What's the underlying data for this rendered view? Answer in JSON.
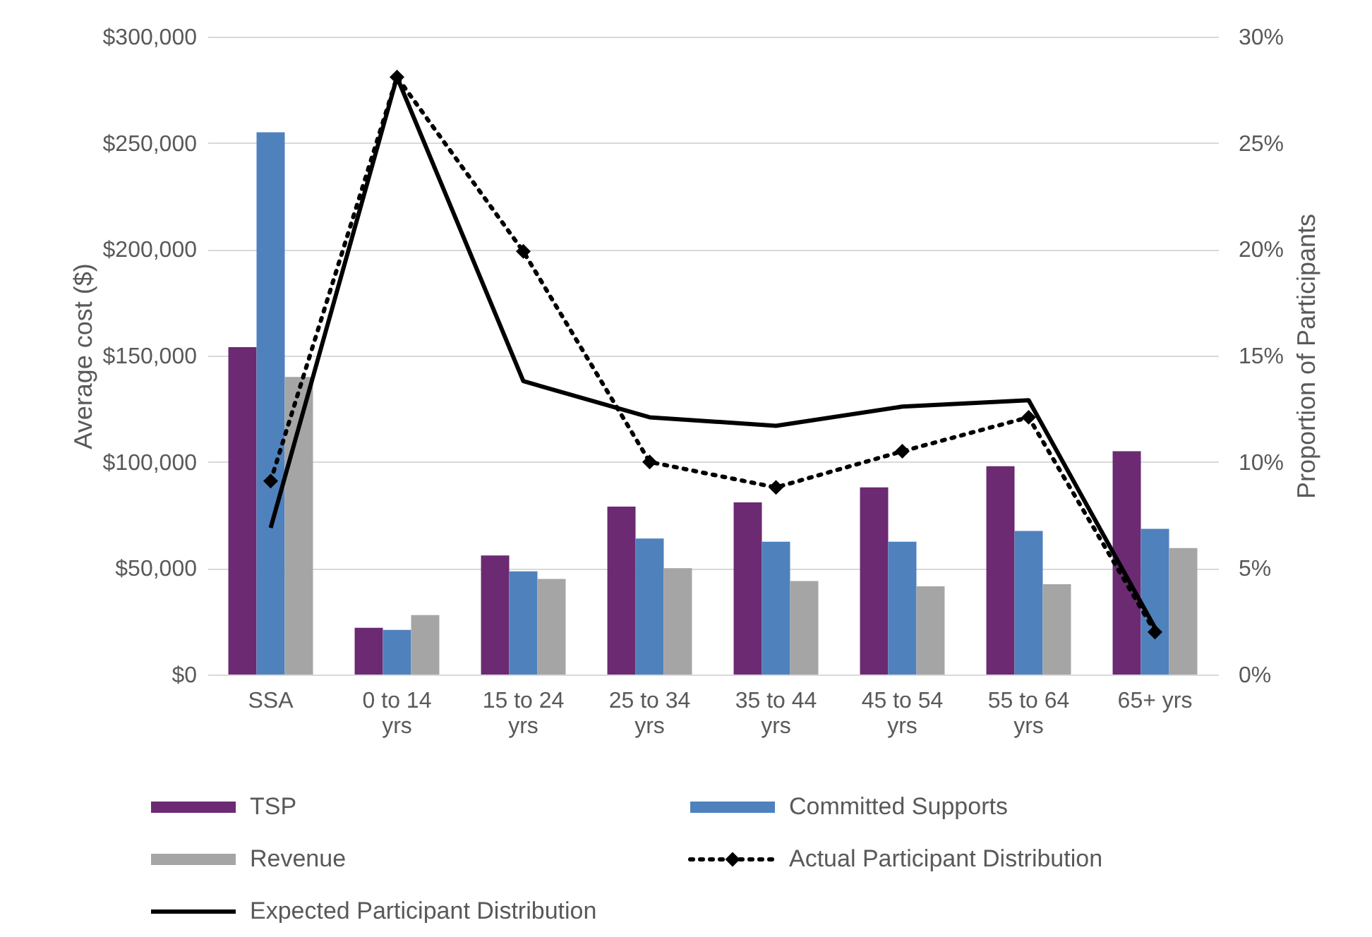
{
  "chart_data": {
    "type": "bar",
    "categories": [
      "SSA",
      "0 to 14 yrs",
      "15 to 24 yrs",
      "25 to 34 yrs",
      "35 to 44 yrs",
      "45 to 54 yrs",
      "55 to 64 yrs",
      "65+ yrs"
    ],
    "ylabel": "Average cost ($)",
    "y2label": "Proportion of Participants",
    "ylim": [
      0,
      300000
    ],
    "yticks": [
      {
        "value": 0,
        "label": "$0"
      },
      {
        "value": 50000,
        "label": "$50,000"
      },
      {
        "value": 100000,
        "label": "$100,000"
      },
      {
        "value": 150000,
        "label": "$150,000"
      },
      {
        "value": 200000,
        "label": "$200,000"
      },
      {
        "value": 250000,
        "label": "$250,000"
      },
      {
        "value": 300000,
        "label": "$300,000"
      }
    ],
    "y2lim": [
      0,
      30
    ],
    "y2ticks": [
      {
        "value": 0,
        "label": "0%"
      },
      {
        "value": 5,
        "label": "5%"
      },
      {
        "value": 10,
        "label": "10%"
      },
      {
        "value": 15,
        "label": "15%"
      },
      {
        "value": 20,
        "label": "20%"
      },
      {
        "value": 25,
        "label": "25%"
      },
      {
        "value": 30,
        "label": "30%"
      }
    ],
    "grid": "y",
    "legend": "bottom",
    "series": [
      {
        "name": "TSP",
        "type": "bar",
        "color": "#6b2a72",
        "values": [
          154000,
          22000,
          56000,
          79000,
          81000,
          88000,
          98000,
          105000
        ]
      },
      {
        "name": "Committed Supports",
        "type": "bar",
        "color": "#4f81bd",
        "values": [
          255000,
          21000,
          48500,
          64000,
          62500,
          62500,
          67500,
          68500
        ]
      },
      {
        "name": "Revenue",
        "type": "bar",
        "color": "#a5a5a5",
        "values": [
          140000,
          28000,
          45000,
          50000,
          44000,
          41500,
          42500,
          59500
        ]
      },
      {
        "name": "Actual Participant Distribution",
        "type": "line",
        "axis": "y2",
        "color": "#000000",
        "line_style": "dotted",
        "marker": "diamond",
        "values": [
          9.1,
          28.1,
          19.9,
          10.0,
          8.8,
          10.5,
          12.1,
          2.0
        ]
      },
      {
        "name": "Expected Participant Distribution",
        "type": "line",
        "axis": "y2",
        "color": "#000000",
        "line_style": "solid",
        "marker": "none",
        "values": [
          6.9,
          28.1,
          13.8,
          12.1,
          11.7,
          12.6,
          12.9,
          2.2
        ]
      }
    ]
  }
}
